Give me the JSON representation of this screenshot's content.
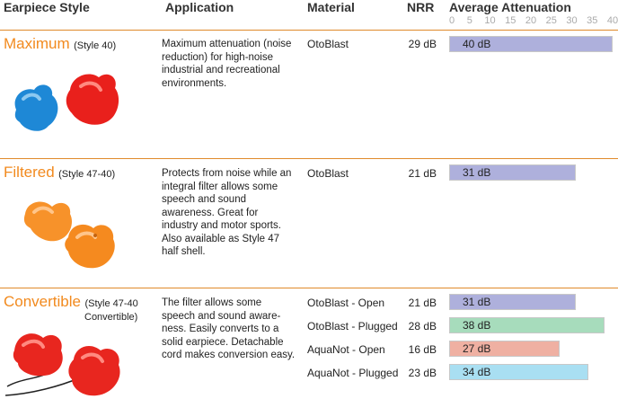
{
  "headers": {
    "style": "Earpiece Style",
    "application": "Application",
    "material": "Material",
    "nrr": "NRR",
    "attenuation": "Average Attenuation"
  },
  "scale_ticks": [
    "0",
    "5",
    "10",
    "15",
    "20",
    "25",
    "30",
    "35",
    "40"
  ],
  "scale_max": 40,
  "colors": {
    "accent": "#f28a1e",
    "bar_purple": "#aeb0dc",
    "bar_green": "#a7dcbc",
    "bar_salmon": "#efb0a2",
    "bar_cyan": "#a9dff2"
  },
  "styles": [
    {
      "name": "Maximum",
      "code": "(Style 40)",
      "code2": "",
      "image": "blue-and-red-earplugs",
      "description": "Maximum attenuation (noise reduction) for high-noise industrial and recreational environments.",
      "rows": [
        {
          "material": "OtoBlast",
          "nrr": "29 dB",
          "attenuation": 40,
          "label": "40 dB",
          "color": "#aeb0dc"
        }
      ]
    },
    {
      "name": "Filtered",
      "code": "(Style 47-40)",
      "code2": "",
      "image": "orange-earplugs",
      "description": "Protects from noise while an integral filter allows some speech and sound awareness. Great for industry and motor sports. Also available as Style 47 half shell.",
      "rows": [
        {
          "material": "OtoBlast",
          "nrr": "21 dB",
          "attenuation": 31,
          "label": "31 dB",
          "color": "#aeb0dc"
        }
      ]
    },
    {
      "name": "Convertible",
      "code": "(Style 47-40",
      "code2": "Convertible)",
      "image": "red-corded-earplugs",
      "description": "The filter allows some speech and sound aware-ness. Easily converts to a solid earpiece. Detachable cord makes conversion easy.",
      "rows": [
        {
          "material": "OtoBlast - Open",
          "nrr": "21 dB",
          "attenuation": 31,
          "label": "31 dB",
          "color": "#aeb0dc"
        },
        {
          "material": "OtoBlast - Plugged",
          "nrr": "28 dB",
          "attenuation": 38,
          "label": "38 dB",
          "color": "#a7dcbc"
        },
        {
          "material": "AquaNot - Open",
          "nrr": "16 dB",
          "attenuation": 27,
          "label": "27 dB",
          "color": "#efb0a2"
        },
        {
          "material": "AquaNot - Plugged",
          "nrr": "23 dB",
          "attenuation": 34,
          "label": "34 dB",
          "color": "#a9dff2"
        }
      ]
    }
  ]
}
